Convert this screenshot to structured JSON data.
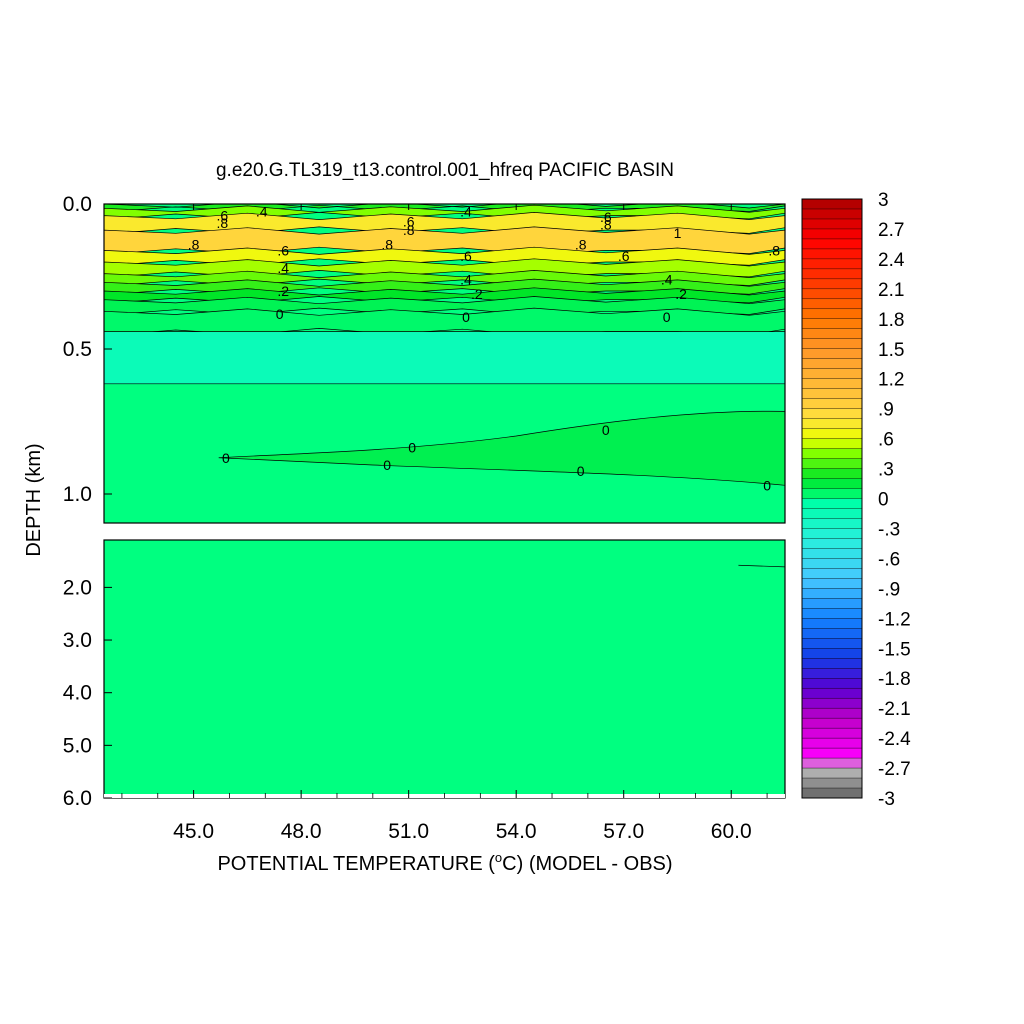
{
  "chart_data": {
    "type": "heatmap",
    "title": "g.e20.G.TL319_t13.control.001_hfreq PACIFIC BASIN",
    "xlabel_prefix": "POTENTIAL TEMPERATURE (",
    "xlabel_unit_sup": "o",
    "xlabel_suffix": "C) (MODEL - OBS)",
    "ylabel": "DEPTH (km)",
    "x_range": [
      42.5,
      61.5
    ],
    "x_ticks": [
      "45.0",
      "48.0",
      "51.0",
      "54.0",
      "57.0",
      "60.0"
    ],
    "x_tick_values": [
      45,
      48,
      51,
      54,
      57,
      60
    ],
    "upper_panel": {
      "depth_range_km": [
        0.0,
        1.1
      ],
      "y_ticks": [
        "0.0",
        "0.5",
        "1.0"
      ],
      "y_tick_values": [
        0.0,
        0.5,
        1.0
      ]
    },
    "lower_panel": {
      "depth_range_km": [
        1.1,
        6.0
      ],
      "y_ticks": [
        "2.0",
        "3.0",
        "4.0",
        "5.0",
        "6.0"
      ],
      "y_tick_values": [
        2.0,
        3.0,
        4.0,
        5.0,
        6.0
      ]
    },
    "colorbar": {
      "range": [
        -3,
        3
      ],
      "step": 0.1,
      "labels": [
        "3",
        "2.7",
        "2.4",
        "2.1",
        "1.8",
        "1.5",
        "1.2",
        ".9",
        ".6",
        ".3",
        "0",
        "-.3",
        "-.6",
        "-.9",
        "-1.2",
        "-1.5",
        "-1.8",
        "-2.1",
        "-2.4",
        "-2.7",
        "-3"
      ]
    },
    "bands": [
      {
        "depth_top": 0.0,
        "depth_bottom": 0.015,
        "value": 0.25
      },
      {
        "depth_top": 0.015,
        "depth_bottom": 0.04,
        "value": 0.45
      },
      {
        "depth_top": 0.04,
        "depth_bottom": 0.09,
        "value": 0.75
      },
      {
        "depth_top": 0.09,
        "depth_bottom": 0.16,
        "value": 0.9
      },
      {
        "depth_top": 0.16,
        "depth_bottom": 0.2,
        "value": 0.65
      },
      {
        "depth_top": 0.2,
        "depth_bottom": 0.24,
        "value": 0.5
      },
      {
        "depth_top": 0.24,
        "depth_bottom": 0.27,
        "value": 0.4
      },
      {
        "depth_top": 0.27,
        "depth_bottom": 0.3,
        "value": 0.3
      },
      {
        "depth_top": 0.3,
        "depth_bottom": 0.33,
        "value": 0.2
      },
      {
        "depth_top": 0.33,
        "depth_bottom": 0.37,
        "value": 0.1
      },
      {
        "depth_top": 0.37,
        "depth_bottom": 0.44,
        "value": 0.05
      },
      {
        "depth_top": 0.44,
        "depth_bottom": 0.62,
        "value": -0.15
      },
      {
        "depth_top": 0.62,
        "depth_bottom": 1.1,
        "value": 0.0
      }
    ],
    "contour_labels": [
      {
        "text": ".6",
        "x": 45.8,
        "d": 0.04
      },
      {
        "text": ".8",
        "x": 45.8,
        "d": 0.065
      },
      {
        "text": ".4",
        "x": 46.9,
        "d": 0.025
      },
      {
        "text": ".8",
        "x": 45.0,
        "d": 0.14
      },
      {
        "text": ".6",
        "x": 47.5,
        "d": 0.16
      },
      {
        "text": ".4",
        "x": 47.5,
        "d": 0.22
      },
      {
        "text": ".2",
        "x": 47.5,
        "d": 0.3
      },
      {
        "text": "0",
        "x": 47.4,
        "d": 0.38
      },
      {
        "text": ".6",
        "x": 51.0,
        "d": 0.06
      },
      {
        "text": ".8",
        "x": 51.0,
        "d": 0.09
      },
      {
        "text": ".8",
        "x": 50.4,
        "d": 0.14
      },
      {
        "text": ".4",
        "x": 52.6,
        "d": 0.025
      },
      {
        "text": ".6",
        "x": 52.6,
        "d": 0.18
      },
      {
        "text": ".4",
        "x": 52.6,
        "d": 0.26
      },
      {
        "text": ".2",
        "x": 52.9,
        "d": 0.31
      },
      {
        "text": "0",
        "x": 52.6,
        "d": 0.39
      },
      {
        "text": ".6",
        "x": 56.5,
        "d": 0.045
      },
      {
        "text": ".8",
        "x": 56.5,
        "d": 0.07
      },
      {
        "text": ".8",
        "x": 55.8,
        "d": 0.14
      },
      {
        "text": ".6",
        "x": 57.0,
        "d": 0.18
      },
      {
        "text": "1",
        "x": 58.5,
        "d": 0.1
      },
      {
        "text": ".4",
        "x": 58.2,
        "d": 0.26
      },
      {
        "text": ".2",
        "x": 58.6,
        "d": 0.31
      },
      {
        "text": "0",
        "x": 58.2,
        "d": 0.39
      },
      {
        "text": ".8",
        "x": 61.2,
        "d": 0.16
      },
      {
        "text": "0",
        "x": 45.9,
        "d": 0.875
      },
      {
        "text": "0",
        "x": 51.1,
        "d": 0.84
      },
      {
        "text": "0",
        "x": 50.4,
        "d": 0.9
      },
      {
        "text": "0",
        "x": 56.5,
        "d": 0.78
      },
      {
        "text": "0",
        "x": 55.8,
        "d": 0.92
      },
      {
        "text": "0",
        "x": 61.0,
        "d": 0.97
      }
    ]
  }
}
